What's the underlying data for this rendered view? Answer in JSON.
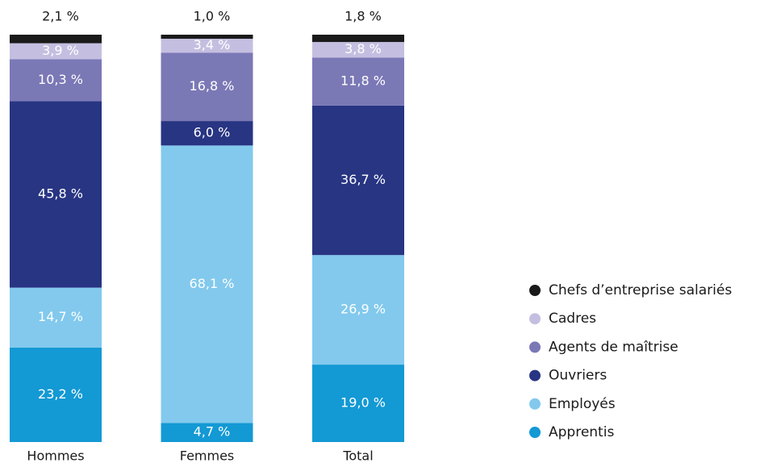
{
  "chart_data": {
    "type": "stacked_bar",
    "categories": [
      "Hommes",
      "Femmes",
      "Total"
    ],
    "series": [
      {
        "name": "Chefs d’entreprise salariés",
        "color": "#1a1a1a",
        "values": [
          2.1,
          1.0,
          1.8
        ],
        "value_labels": [
          "2,1 %",
          "1,0 %",
          "1,8 %"
        ]
      },
      {
        "name": "Cadres",
        "color": "#c4bfe0",
        "values": [
          3.9,
          3.4,
          3.8
        ],
        "value_labels": [
          "3,9 %",
          "3,4 %",
          "3,8 %"
        ]
      },
      {
        "name": "Agents de maîtrise",
        "color": "#7b78b6",
        "values": [
          10.3,
          16.8,
          11.8
        ],
        "value_labels": [
          "10,3 %",
          "16,8 %",
          "11,8 %"
        ]
      },
      {
        "name": "Ouvriers",
        "color": "#283583",
        "values": [
          45.8,
          6.0,
          36.7
        ],
        "value_labels": [
          "45,8 %",
          "6,0 %",
          "36,7 %"
        ]
      },
      {
        "name": "Employés",
        "color": "#82c9ed",
        "values": [
          14.7,
          68.1,
          26.9
        ],
        "value_labels": [
          "14,7 %",
          "68,1 %",
          "26,9 %"
        ]
      },
      {
        "name": "Apprentis",
        "color": "#1399d4",
        "values": [
          23.2,
          4.7,
          19.0
        ],
        "value_labels": [
          "23,2 %",
          "4,7 %",
          "19,0 %"
        ]
      }
    ]
  }
}
